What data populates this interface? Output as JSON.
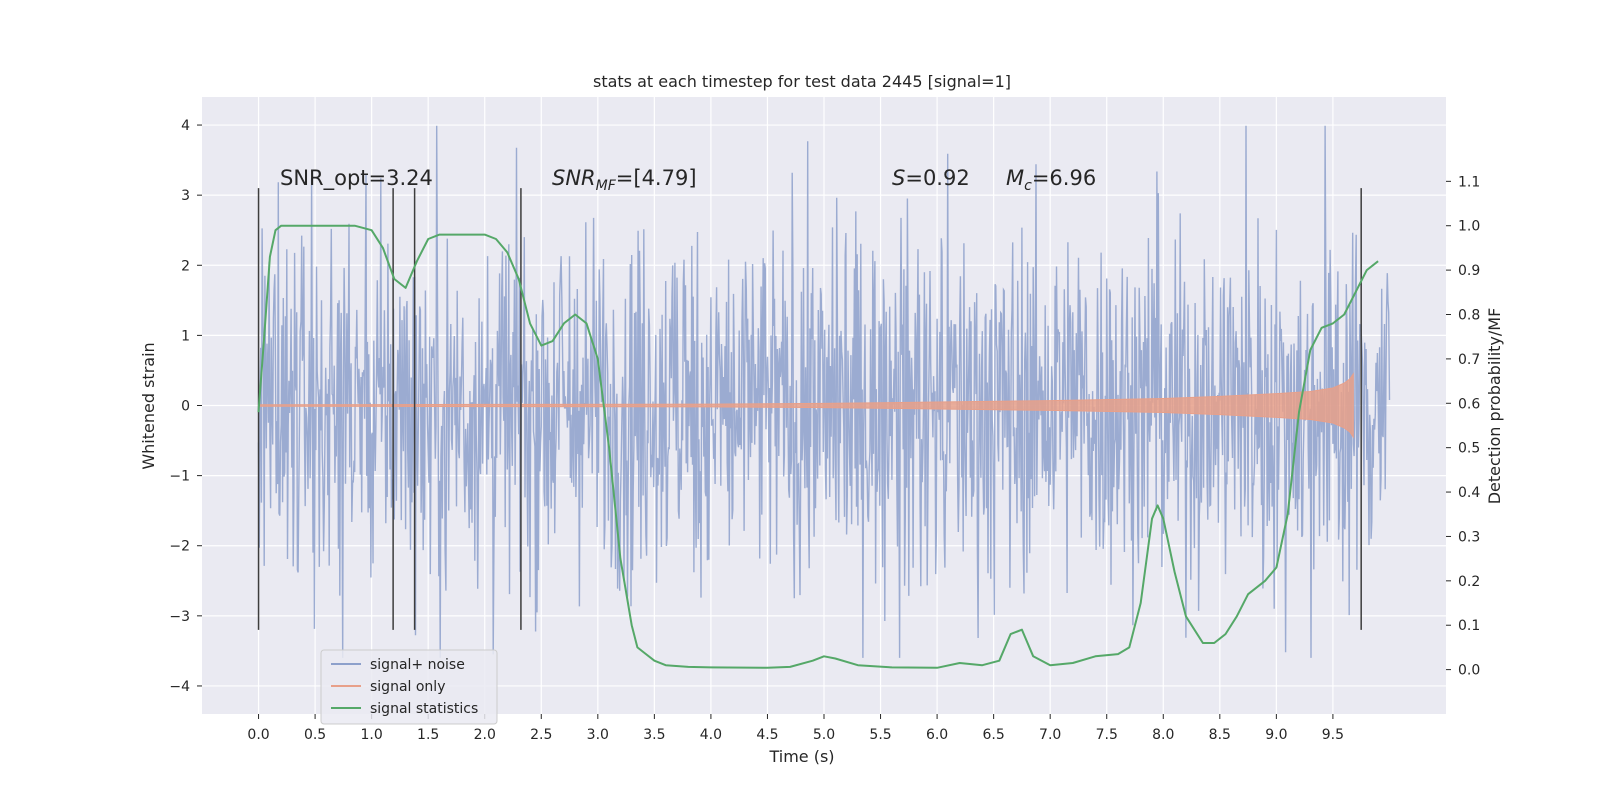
{
  "chart_data": {
    "type": "line",
    "title": "stats at each timestep for test data 2445 [signal=1]",
    "xlabel": "Time (s)",
    "ylabel": "Whitened strain",
    "ylabel_right": "Detection probability/MF",
    "xlim": [
      -0.5,
      10.5
    ],
    "ylim": [
      -4.4,
      4.4
    ],
    "ylim_right": [
      -0.1,
      1.29
    ],
    "x_ticks": [
      0.0,
      0.5,
      1.0,
      1.5,
      2.0,
      2.5,
      3.0,
      3.5,
      4.0,
      4.5,
      5.0,
      5.5,
      6.0,
      6.5,
      7.0,
      7.5,
      8.0,
      8.5,
      9.0,
      9.5
    ],
    "x_tick_labels": [
      "0.0",
      "0.5",
      "1.0",
      "1.5",
      "2.0",
      "2.5",
      "3.0",
      "3.5",
      "4.0",
      "4.5",
      "5.0",
      "5.5",
      "6.0",
      "6.5",
      "7.0",
      "7.5",
      "8.0",
      "8.5",
      "9.0",
      "9.5"
    ],
    "y_ticks": [
      4,
      3,
      2,
      1,
      0,
      -1,
      -2,
      -3,
      -4
    ],
    "y_tick_labels": [
      "4",
      "3",
      "2",
      "1",
      "0",
      "−1",
      "−2",
      "−3",
      "−4"
    ],
    "y_right_ticks": [
      1.1,
      1.0,
      0.9,
      0.8,
      0.7,
      0.6,
      0.5,
      0.4,
      0.3,
      0.2,
      0.1,
      0.0
    ],
    "y_right_tick_labels": [
      "1.1",
      "1.0",
      "0.9",
      "0.8",
      "0.7",
      "0.6",
      "0.5",
      "0.4",
      "0.3",
      "0.2",
      "0.1",
      "0.0"
    ],
    "grid": true,
    "legend_position": "lower-left",
    "legend": [
      {
        "label": "signal+ noise",
        "color": "#8da0cb"
      },
      {
        "label": "signal only",
        "color": "#e8a08a"
      },
      {
        "label": "signal statistics",
        "color": "#55a868"
      }
    ],
    "annotations": {
      "snr_opt": "SNR_opt=3.24",
      "snr_mf_base": "SNR",
      "snr_mf_sub": "MF",
      "snr_mf_value": "=[4.79]",
      "spin_base": "S",
      "spin_value": "=0.92",
      "mc_base": "M",
      "mc_sub": "c",
      "mc_value": "=6.96"
    },
    "noise_envelope": {
      "x_range": [
        0.0,
        10.0
      ],
      "typical_amplitude": 2.3,
      "peak_max": 3.99,
      "peak_min": -3.6
    },
    "signal_only": {
      "x": [
        0.0,
        2.0,
        4.0,
        5.0,
        6.0,
        7.0,
        8.0,
        8.5,
        9.0,
        9.3,
        9.5,
        9.6,
        9.65,
        9.68
      ],
      "amplitude": [
        0.01,
        0.015,
        0.02,
        0.03,
        0.05,
        0.07,
        0.1,
        0.13,
        0.17,
        0.2,
        0.25,
        0.32,
        0.38,
        0.45
      ]
    },
    "vertical_markers": {
      "x": [
        0.0,
        1.19,
        1.38,
        2.32,
        9.75
      ],
      "y_range": [
        -3.2,
        3.1
      ]
    },
    "signal_statistics": {
      "name": "signal statistics",
      "x": [
        0.0,
        0.05,
        0.1,
        0.15,
        0.2,
        0.3,
        0.5,
        0.7,
        0.85,
        1.0,
        1.1,
        1.2,
        1.3,
        1.4,
        1.5,
        1.6,
        1.7,
        1.8,
        2.0,
        2.1,
        2.2,
        2.3,
        2.4,
        2.5,
        2.6,
        2.7,
        2.8,
        2.9,
        3.0,
        3.1,
        3.2,
        3.3,
        3.35,
        3.4,
        3.5,
        3.6,
        3.8,
        4.0,
        4.5,
        4.7,
        4.9,
        5.0,
        5.1,
        5.3,
        5.6,
        6.0,
        6.2,
        6.4,
        6.55,
        6.65,
        6.75,
        6.85,
        7.0,
        7.2,
        7.4,
        7.6,
        7.7,
        7.8,
        7.9,
        7.95,
        8.0,
        8.1,
        8.2,
        8.35,
        8.45,
        8.55,
        8.65,
        8.75,
        8.9,
        9.0,
        9.1,
        9.2,
        9.3,
        9.4,
        9.5,
        9.6,
        9.7,
        9.8,
        9.9
      ],
      "values": [
        0.58,
        0.75,
        0.93,
        0.99,
        1.0,
        1.0,
        1.0,
        1.0,
        1.0,
        0.99,
        0.95,
        0.88,
        0.86,
        0.92,
        0.97,
        0.98,
        0.98,
        0.98,
        0.98,
        0.97,
        0.94,
        0.88,
        0.78,
        0.73,
        0.74,
        0.78,
        0.8,
        0.78,
        0.7,
        0.5,
        0.25,
        0.1,
        0.05,
        0.04,
        0.02,
        0.01,
        0.006,
        0.005,
        0.004,
        0.006,
        0.02,
        0.03,
        0.025,
        0.01,
        0.005,
        0.004,
        0.015,
        0.01,
        0.02,
        0.08,
        0.09,
        0.03,
        0.01,
        0.015,
        0.03,
        0.035,
        0.05,
        0.15,
        0.34,
        0.37,
        0.34,
        0.22,
        0.12,
        0.06,
        0.06,
        0.08,
        0.12,
        0.17,
        0.2,
        0.23,
        0.35,
        0.58,
        0.72,
        0.77,
        0.78,
        0.8,
        0.85,
        0.9,
        0.92
      ]
    }
  }
}
